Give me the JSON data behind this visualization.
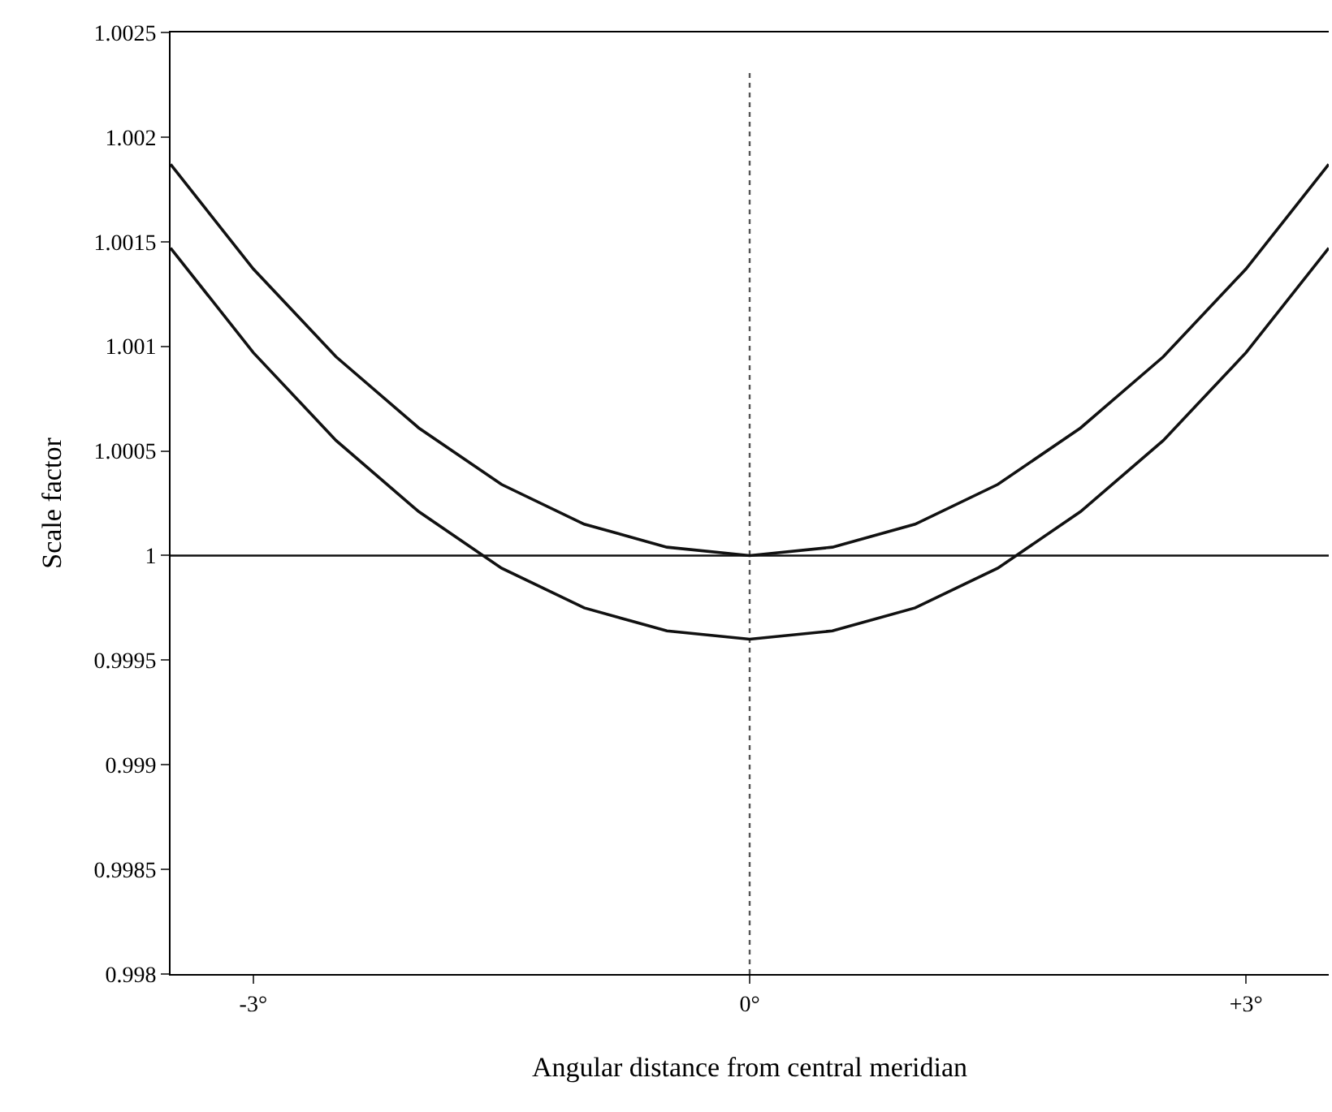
{
  "chart_data": {
    "type": "line",
    "xlabel": "Angular distance from central meridian",
    "ylabel": "Scale factor",
    "x": [
      -3.5,
      -3,
      -2.5,
      -2,
      -1.5,
      -1,
      -0.5,
      0,
      0.5,
      1,
      1.5,
      2,
      2.5,
      3,
      3.5
    ],
    "series": [
      {
        "color": "#111111",
        "values": [
          1.00187,
          1.00137,
          1.00095,
          1.00061,
          1.00034,
          1.00015,
          1.00004,
          1.0,
          1.00004,
          1.00015,
          1.00034,
          1.00061,
          1.00095,
          1.00137,
          1.00187
        ]
      },
      {
        "color": "#111111",
        "values": [
          1.00147,
          1.00097,
          1.00055,
          1.00021,
          0.99994,
          0.99975,
          0.99964,
          0.9996,
          0.99964,
          0.99975,
          0.99994,
          1.00021,
          1.00055,
          1.00097,
          1.00147
        ]
      }
    ],
    "xlim": [
      -3.5,
      3.5
    ],
    "xticks": [
      {
        "value": -3,
        "label": "-3°"
      },
      {
        "value": 0,
        "label": "0°"
      },
      {
        "value": 3,
        "label": "+3°"
      }
    ],
    "ylim": [
      0.998,
      1.0025
    ],
    "yticks": [
      0.998,
      0.9985,
      0.999,
      0.9995,
      1,
      1.0005,
      1.001,
      1.0015,
      1.002,
      1.0025
    ],
    "ref_lines": [
      {
        "axis": "x",
        "value": 0,
        "line_style": "dotted",
        "color": "#555555"
      },
      {
        "axis": "y",
        "value": 1,
        "line_style": "solid",
        "color": "#111111"
      }
    ],
    "marker": "none",
    "line_style": "solid"
  }
}
